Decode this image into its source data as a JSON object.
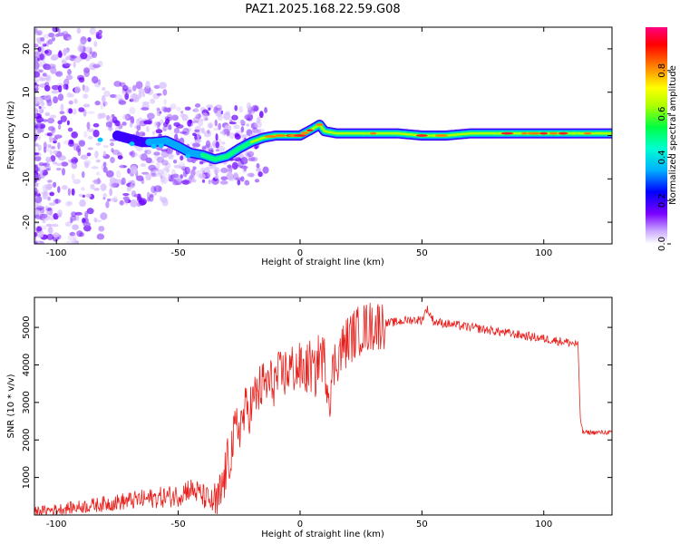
{
  "title": "PAZ1.2025.168.22.59.G08",
  "chart_data": [
    {
      "type": "heatmap",
      "xlabel": "Height of straight line (km)",
      "ylabel": "Frequency (Hz)",
      "xlim": [
        -109,
        128
      ],
      "ylim": [
        -25,
        25
      ],
      "xticks": [
        -100,
        -50,
        0,
        50,
        100
      ],
      "yticks": [
        -20,
        -10,
        0,
        10,
        20
      ],
      "colorbar": {
        "label": "Normalized spectral amplitude",
        "range": [
          0.0,
          1.0
        ],
        "ticks": [
          0.0,
          0.2,
          0.4,
          0.6,
          0.8
        ],
        "colormap": [
          "#ffffff",
          "#7a00ff",
          "#0000ff",
          "#00d8ff",
          "#00ff60",
          "#ffff00",
          "#ff8000",
          "#ff0000",
          "#ff0080"
        ]
      },
      "ridge_frequency": {
        "height_km": [
          -75,
          -65,
          -60,
          -55,
          -50,
          -45,
          -40,
          -35,
          -30,
          -25,
          -20,
          -15,
          -10,
          -5,
          0,
          5,
          8,
          10,
          15,
          20,
          30,
          40,
          50,
          60,
          70,
          80,
          90,
          100,
          110,
          120,
          128
        ],
        "frequency_hz": [
          0.0,
          -1.5,
          -1.5,
          -1.2,
          -2.5,
          -4.0,
          -4.5,
          -5.5,
          -4.8,
          -3.0,
          -1.5,
          -0.5,
          0.0,
          0.0,
          0.0,
          1.5,
          2.5,
          1.0,
          0.5,
          0.5,
          0.5,
          0.5,
          0.0,
          0.0,
          0.5,
          0.5,
          0.5,
          0.5,
          0.5,
          0.5,
          0.5
        ]
      }
    },
    {
      "type": "line",
      "xlabel": "Height of straight line (km)",
      "ylabel": "SNR (10 * v/v)",
      "xlim": [
        -109,
        128
      ],
      "ylim": [
        0,
        5800
      ],
      "xticks": [
        -100,
        -50,
        0,
        50,
        100
      ],
      "yticks": [
        1000,
        2000,
        3000,
        4000,
        5000
      ],
      "series": [
        {
          "color": "#e8201c",
          "x": [
            -109,
            -100,
            -90,
            -80,
            -70,
            -60,
            -50,
            -46,
            -42,
            -38,
            -34,
            -32,
            -30,
            -28,
            -26,
            -24,
            -22,
            -20,
            -18,
            -16,
            -14,
            -12,
            -10,
            -8,
            -6,
            -4,
            -2,
            0,
            2,
            4,
            6,
            8,
            10,
            12,
            14,
            16,
            18,
            20,
            25,
            30,
            35,
            40,
            45,
            50,
            52,
            55,
            60,
            70,
            80,
            90,
            100,
            110,
            114,
            115,
            116,
            120,
            128
          ],
          "y": [
            100,
            150,
            220,
            300,
            380,
            450,
            520,
            700,
            600,
            420,
            250,
            700,
            1300,
            1800,
            2300,
            2500,
            2800,
            2900,
            3200,
            3400,
            3500,
            3500,
            3600,
            3700,
            3800,
            3900,
            3900,
            3900,
            3800,
            4000,
            3700,
            4300,
            4100,
            3200,
            4000,
            4300,
            4500,
            4700,
            4950,
            5050,
            5100,
            5150,
            5200,
            5200,
            5500,
            5150,
            5100,
            5000,
            4900,
            4800,
            4700,
            4600,
            4550,
            2600,
            2200,
            2200,
            2200
          ]
        }
      ]
    }
  ]
}
